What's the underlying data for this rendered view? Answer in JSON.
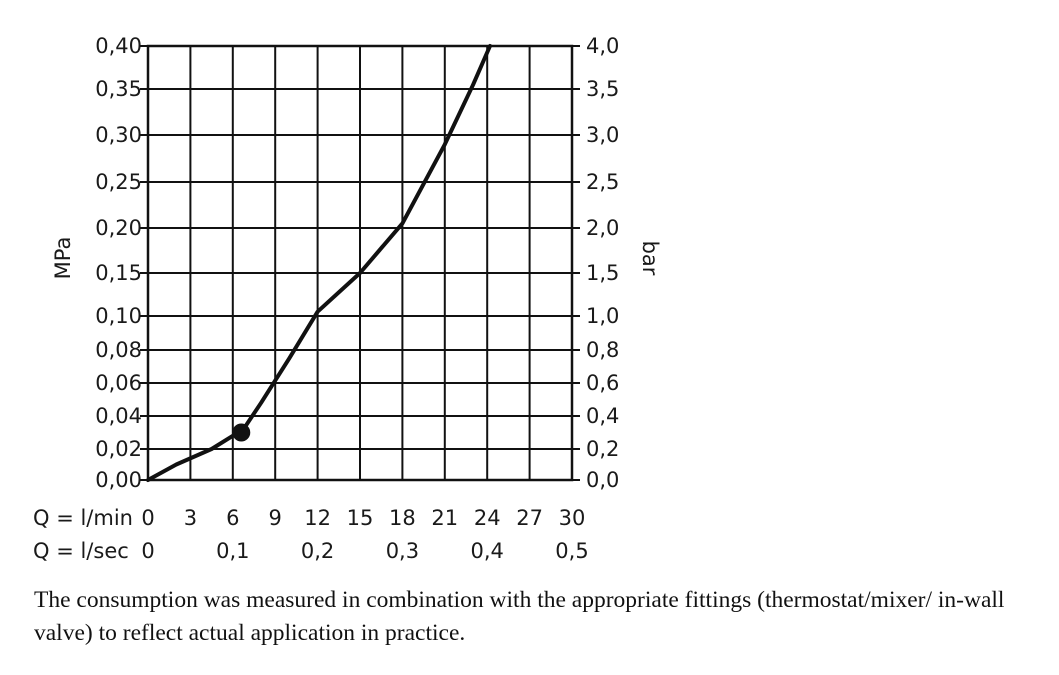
{
  "chart_data": {
    "type": "line",
    "title": "",
    "y_left": {
      "label": "MPa",
      "ticks": [
        {
          "v": 0.0,
          "label": "0,00"
        },
        {
          "v": 0.02,
          "label": "0,02"
        },
        {
          "v": 0.04,
          "label": "0,04"
        },
        {
          "v": 0.06,
          "label": "0,06"
        },
        {
          "v": 0.08,
          "label": "0,08"
        },
        {
          "v": 0.1,
          "label": "0,10"
        },
        {
          "v": 0.15,
          "label": "0,15"
        },
        {
          "v": 0.2,
          "label": "0,20"
        },
        {
          "v": 0.25,
          "label": "0,25"
        },
        {
          "v": 0.3,
          "label": "0,30"
        },
        {
          "v": 0.35,
          "label": "0,35"
        },
        {
          "v": 0.4,
          "label": "0,40"
        }
      ]
    },
    "y_right": {
      "label": "bar",
      "ticks": [
        "0,0",
        "0,2",
        "0,4",
        "0,6",
        "0,8",
        "1,0",
        "1,5",
        "2,0",
        "2,5",
        "3,0",
        "3,5",
        "4,0"
      ]
    },
    "x_primary": {
      "label": "Q = l/min",
      "ticks": [
        {
          "v": 0,
          "label": "0"
        },
        {
          "v": 3,
          "label": "3"
        },
        {
          "v": 6,
          "label": "6"
        },
        {
          "v": 9,
          "label": "9"
        },
        {
          "v": 12,
          "label": "12"
        },
        {
          "v": 15,
          "label": "15"
        },
        {
          "v": 18,
          "label": "18"
        },
        {
          "v": 21,
          "label": "21"
        },
        {
          "v": 24,
          "label": "24"
        },
        {
          "v": 27,
          "label": "27"
        },
        {
          "v": 30,
          "label": "30"
        }
      ],
      "range": [
        0,
        30
      ]
    },
    "x_secondary": {
      "label": "Q = l/sec",
      "ticks": [
        {
          "lmin": 0,
          "label": "0"
        },
        {
          "lmin": 6,
          "label": "0,1"
        },
        {
          "lmin": 12,
          "label": "0,2"
        },
        {
          "lmin": 18,
          "label": "0,3"
        },
        {
          "lmin": 24,
          "label": "0,4"
        },
        {
          "lmin": 30,
          "label": "0,5"
        }
      ]
    },
    "grid": true,
    "series": [
      {
        "x": [
          0,
          2,
          4.5,
          6,
          6.6,
          8,
          10,
          12,
          15,
          18,
          21,
          23,
          24.2
        ],
        "y": [
          0.0,
          0.01,
          0.02,
          0.028,
          0.03,
          0.048,
          0.075,
          0.105,
          0.15,
          0.205,
          0.29,
          0.355,
          0.4
        ]
      }
    ],
    "marker": {
      "x": 6.6,
      "y": 0.03
    }
  },
  "caption": "The consumption was measured in combination with the appropriate fittings (thermostat/mixer/ in-wall valve) to reflect actual application in practice."
}
